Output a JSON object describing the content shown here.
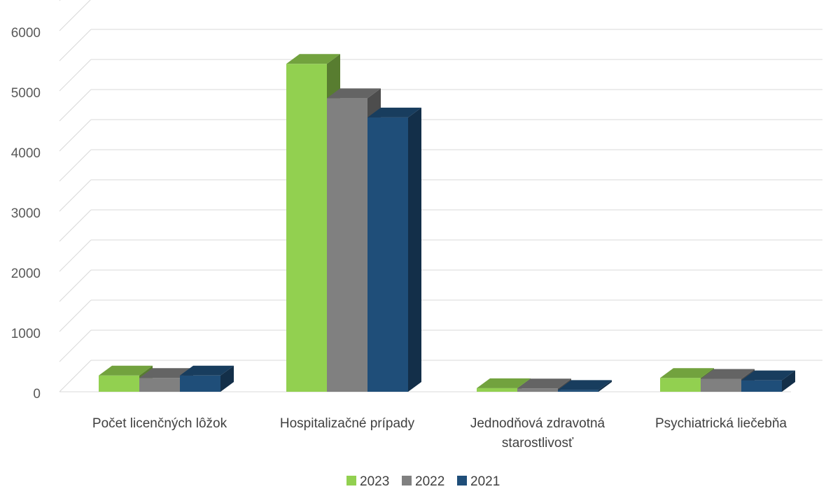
{
  "chart_data": {
    "type": "bar",
    "style": "3d-clustered-column",
    "categories": [
      [
        "Počet licenčných lôžok"
      ],
      [
        "Hospitalizačné prípady"
      ],
      [
        "Jednodňová zdravotná",
        "starostlivosť"
      ],
      [
        "Psychiatrická liečebňa"
      ]
    ],
    "series": [
      {
        "name": "2023",
        "values": [
          270,
          5450,
          60,
          230
        ],
        "color": "#92D050"
      },
      {
        "name": "2022",
        "values": [
          230,
          4880,
          55,
          215
        ],
        "color": "#808080"
      },
      {
        "name": "2021",
        "values": [
          270,
          4560,
          30,
          190
        ],
        "color": "#1F4E79"
      }
    ],
    "yticks": [
      0,
      1000,
      2000,
      3000,
      4000,
      5000,
      6000
    ],
    "ylim": [
      0,
      6500
    ],
    "grid": true,
    "legend_position": "bottom"
  }
}
